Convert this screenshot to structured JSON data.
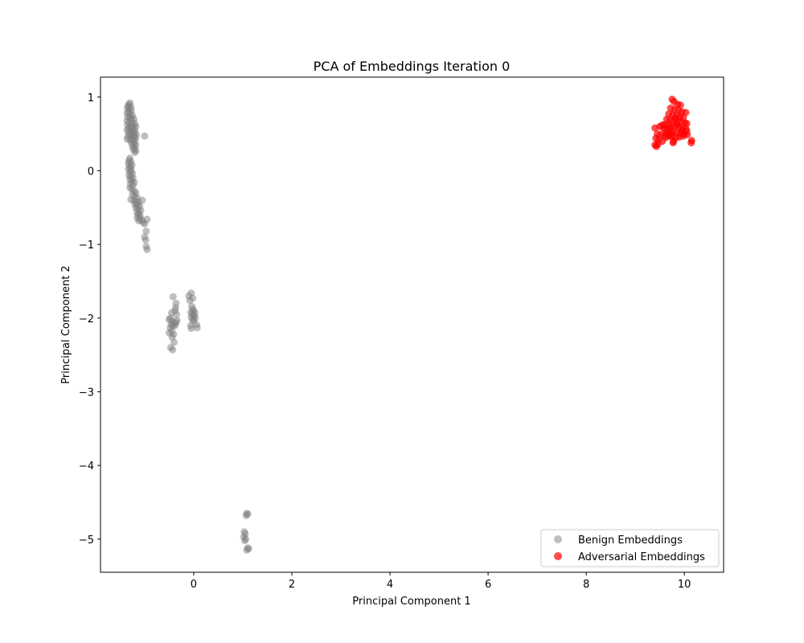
{
  "chart_data": {
    "type": "scatter",
    "title": "PCA of Embeddings Iteration 0",
    "xlabel": "Principal Component 1",
    "ylabel": "Principal Component 2",
    "xlim": [
      -1.9,
      10.8
    ],
    "ylim": [
      -5.45,
      1.27
    ],
    "xticks": [
      0,
      2,
      4,
      6,
      8,
      10
    ],
    "yticks": [
      1,
      0,
      -1,
      -2,
      -3,
      -4,
      -5
    ],
    "ytick_labels": [
      "1",
      "0",
      "−1",
      "−2",
      "−3",
      "−4",
      "−5"
    ],
    "xtick_labels": [
      "0",
      "2",
      "4",
      "6",
      "8",
      "10"
    ],
    "grid": false,
    "legend_position": "lower-right",
    "series": [
      {
        "name": "Benign Embeddings",
        "color": "#808080",
        "points": [
          [
            -1.3,
            0.92
          ],
          [
            -1.32,
            0.9
          ],
          [
            -1.34,
            0.88
          ],
          [
            -1.28,
            0.87
          ],
          [
            -1.35,
            0.85
          ],
          [
            -1.31,
            0.84
          ],
          [
            -1.27,
            0.82
          ],
          [
            -1.33,
            0.8
          ],
          [
            -1.36,
            0.78
          ],
          [
            -1.29,
            0.77
          ],
          [
            -1.25,
            0.75
          ],
          [
            -1.34,
            0.73
          ],
          [
            -1.3,
            0.72
          ],
          [
            -1.27,
            0.7
          ],
          [
            -1.22,
            0.7
          ],
          [
            -1.36,
            0.68
          ],
          [
            -1.32,
            0.66
          ],
          [
            -1.26,
            0.65
          ],
          [
            -1.2,
            0.64
          ],
          [
            -1.35,
            0.62
          ],
          [
            -1.29,
            0.61
          ],
          [
            -1.23,
            0.6
          ],
          [
            -1.18,
            0.6
          ],
          [
            -1.33,
            0.58
          ],
          [
            -1.27,
            0.57
          ],
          [
            -1.21,
            0.56
          ],
          [
            -1.36,
            0.55
          ],
          [
            -1.3,
            0.54
          ],
          [
            -1.24,
            0.53
          ],
          [
            -1.19,
            0.52
          ],
          [
            -1.32,
            0.51
          ],
          [
            -1.26,
            0.5
          ],
          [
            -1.22,
            0.49
          ],
          [
            -1.17,
            0.48
          ],
          [
            -1.34,
            0.47
          ],
          [
            -1.28,
            0.46
          ],
          [
            -1.23,
            0.45
          ],
          [
            -1.19,
            0.44
          ],
          [
            -1.36,
            0.43
          ],
          [
            -1.3,
            0.42
          ],
          [
            -1.25,
            0.41
          ],
          [
            -1.2,
            0.4
          ],
          [
            -1.27,
            0.38
          ],
          [
            -1.22,
            0.36
          ],
          [
            -1.18,
            0.35
          ],
          [
            -1.25,
            0.33
          ],
          [
            -1.2,
            0.31
          ],
          [
            -1.23,
            0.29
          ],
          [
            -1.18,
            0.27
          ],
          [
            -1.2,
            0.25
          ],
          [
            -1.0,
            0.47
          ],
          [
            -1.3,
            0.17
          ],
          [
            -1.32,
            0.14
          ],
          [
            -1.28,
            0.12
          ],
          [
            -1.33,
            0.1
          ],
          [
            -1.26,
            0.08
          ],
          [
            -1.31,
            0.06
          ],
          [
            -1.28,
            0.04
          ],
          [
            -1.33,
            0.02
          ],
          [
            -1.27,
            0.0
          ],
          [
            -1.3,
            -0.02
          ],
          [
            -1.25,
            -0.04
          ],
          [
            -1.32,
            -0.06
          ],
          [
            -1.28,
            -0.08
          ],
          [
            -1.24,
            -0.1
          ],
          [
            -1.3,
            -0.12
          ],
          [
            -1.26,
            -0.14
          ],
          [
            -1.21,
            -0.16
          ],
          [
            -1.29,
            -0.18
          ],
          [
            -1.24,
            -0.2
          ],
          [
            -1.3,
            -0.23
          ],
          [
            -1.26,
            -0.25
          ],
          [
            -1.21,
            -0.28
          ],
          [
            -1.18,
            -0.3
          ],
          [
            -1.25,
            -0.32
          ],
          [
            -1.2,
            -0.35
          ],
          [
            -1.15,
            -0.37
          ],
          [
            -1.28,
            -0.39
          ],
          [
            -1.22,
            -0.4
          ],
          [
            -1.17,
            -0.42
          ],
          [
            -1.12,
            -0.43
          ],
          [
            -1.05,
            -0.4
          ],
          [
            -1.2,
            -0.45
          ],
          [
            -1.15,
            -0.47
          ],
          [
            -1.1,
            -0.48
          ],
          [
            -1.18,
            -0.5
          ],
          [
            -1.13,
            -0.52
          ],
          [
            -1.08,
            -0.54
          ],
          [
            -1.16,
            -0.56
          ],
          [
            -1.11,
            -0.58
          ],
          [
            -1.14,
            -0.6
          ],
          [
            -1.09,
            -0.62
          ],
          [
            -1.15,
            -0.64
          ],
          [
            -1.1,
            -0.65
          ],
          [
            -1.06,
            -0.67
          ],
          [
            -0.95,
            -0.66
          ],
          [
            -1.12,
            -0.68
          ],
          [
            -1.03,
            -0.7
          ],
          [
            -1.0,
            -0.72
          ],
          [
            -0.97,
            -0.82
          ],
          [
            -1.0,
            -0.9
          ],
          [
            -0.98,
            -0.94
          ],
          [
            -0.97,
            -1.03
          ],
          [
            -0.95,
            -1.07
          ],
          [
            -0.42,
            -1.71
          ],
          [
            -0.45,
            -1.93
          ],
          [
            -0.48,
            -2.0
          ],
          [
            -0.5,
            -2.02
          ],
          [
            -0.44,
            -2.04
          ],
          [
            -0.4,
            -2.07
          ],
          [
            -0.46,
            -2.09
          ],
          [
            -0.42,
            -2.11
          ],
          [
            -0.48,
            -2.13
          ],
          [
            -0.45,
            -2.18
          ],
          [
            -0.5,
            -2.2
          ],
          [
            -0.41,
            -2.22
          ],
          [
            -0.44,
            -2.26
          ],
          [
            -0.4,
            -2.33
          ],
          [
            -0.47,
            -2.4
          ],
          [
            -0.43,
            -2.43
          ],
          [
            -0.36,
            -1.8
          ],
          [
            -0.37,
            -1.86
          ],
          [
            -0.38,
            -1.9
          ],
          [
            -0.35,
            -1.95
          ],
          [
            -0.34,
            -2.03
          ],
          [
            -0.36,
            -2.06
          ],
          [
            -0.38,
            -2.1
          ],
          [
            -0.1,
            -1.7
          ],
          [
            -0.05,
            -1.66
          ],
          [
            -0.08,
            -1.76
          ],
          [
            -0.02,
            -1.73
          ],
          [
            -0.04,
            -1.84
          ],
          [
            -0.02,
            -1.88
          ],
          [
            0.0,
            -1.9
          ],
          [
            -0.06,
            -1.92
          ],
          [
            0.02,
            -1.93
          ],
          [
            -0.03,
            -1.95
          ],
          [
            0.01,
            -1.97
          ],
          [
            -0.05,
            -1.99
          ],
          [
            0.03,
            -2.0
          ],
          [
            -0.02,
            -2.02
          ],
          [
            0.0,
            -2.04
          ],
          [
            -0.06,
            -2.1
          ],
          [
            0.06,
            -2.09
          ],
          [
            0.07,
            -2.13
          ],
          [
            -0.05,
            -2.14
          ],
          [
            1.08,
            -4.65
          ],
          [
            1.1,
            -4.66
          ],
          [
            1.07,
            -4.68
          ],
          [
            1.03,
            -4.9
          ],
          [
            1.05,
            -4.93
          ],
          [
            1.02,
            -4.97
          ],
          [
            1.06,
            -5.0
          ],
          [
            1.04,
            -5.02
          ],
          [
            1.1,
            -5.12
          ],
          [
            1.08,
            -5.15
          ],
          [
            1.12,
            -5.13
          ]
        ]
      },
      {
        "name": "Adversarial Embeddings",
        "color": "#ff0000",
        "points": [
          [
            9.75,
            0.97
          ],
          [
            9.79,
            0.94
          ],
          [
            9.86,
            0.9
          ],
          [
            9.92,
            0.89
          ],
          [
            9.72,
            0.85
          ],
          [
            9.8,
            0.83
          ],
          [
            9.88,
            0.82
          ],
          [
            9.95,
            0.8
          ],
          [
            10.03,
            0.79
          ],
          [
            9.68,
            0.77
          ],
          [
            9.76,
            0.76
          ],
          [
            9.84,
            0.75
          ],
          [
            9.91,
            0.73
          ],
          [
            9.98,
            0.72
          ],
          [
            9.64,
            0.7
          ],
          [
            9.71,
            0.69
          ],
          [
            9.78,
            0.68
          ],
          [
            9.86,
            0.67
          ],
          [
            9.93,
            0.66
          ],
          [
            10.01,
            0.65
          ],
          [
            10.05,
            0.64
          ],
          [
            9.6,
            0.63
          ],
          [
            9.67,
            0.62
          ],
          [
            9.74,
            0.61
          ],
          [
            9.81,
            0.6
          ],
          [
            9.89,
            0.59
          ],
          [
            9.96,
            0.58
          ],
          [
            10.03,
            0.57
          ],
          [
            9.4,
            0.58
          ],
          [
            9.5,
            0.6
          ],
          [
            9.55,
            0.62
          ],
          [
            9.58,
            0.57
          ],
          [
            9.63,
            0.55
          ],
          [
            9.7,
            0.54
          ],
          [
            9.77,
            0.53
          ],
          [
            9.84,
            0.52
          ],
          [
            9.92,
            0.51
          ],
          [
            9.99,
            0.5
          ],
          [
            10.06,
            0.49
          ],
          [
            9.45,
            0.5
          ],
          [
            9.52,
            0.49
          ],
          [
            9.6,
            0.48
          ],
          [
            9.68,
            0.47
          ],
          [
            9.75,
            0.46
          ],
          [
            9.83,
            0.45
          ],
          [
            9.9,
            0.46
          ],
          [
            9.98,
            0.47
          ],
          [
            10.05,
            0.54
          ],
          [
            9.42,
            0.44
          ],
          [
            9.48,
            0.42
          ],
          [
            9.55,
            0.4
          ],
          [
            9.62,
            0.45
          ],
          [
            9.78,
            0.4
          ],
          [
            9.77,
            0.38
          ],
          [
            9.4,
            0.35
          ],
          [
            9.43,
            0.33
          ],
          [
            9.46,
            0.36
          ],
          [
            10.15,
            0.41
          ],
          [
            10.14,
            0.38
          ],
          [
            9.7,
            0.58
          ],
          [
            9.85,
            0.63
          ],
          [
            9.95,
            0.55
          ],
          [
            9.66,
            0.51
          ],
          [
            9.82,
            0.71
          ],
          [
            9.73,
            0.49
          ]
        ]
      }
    ]
  }
}
